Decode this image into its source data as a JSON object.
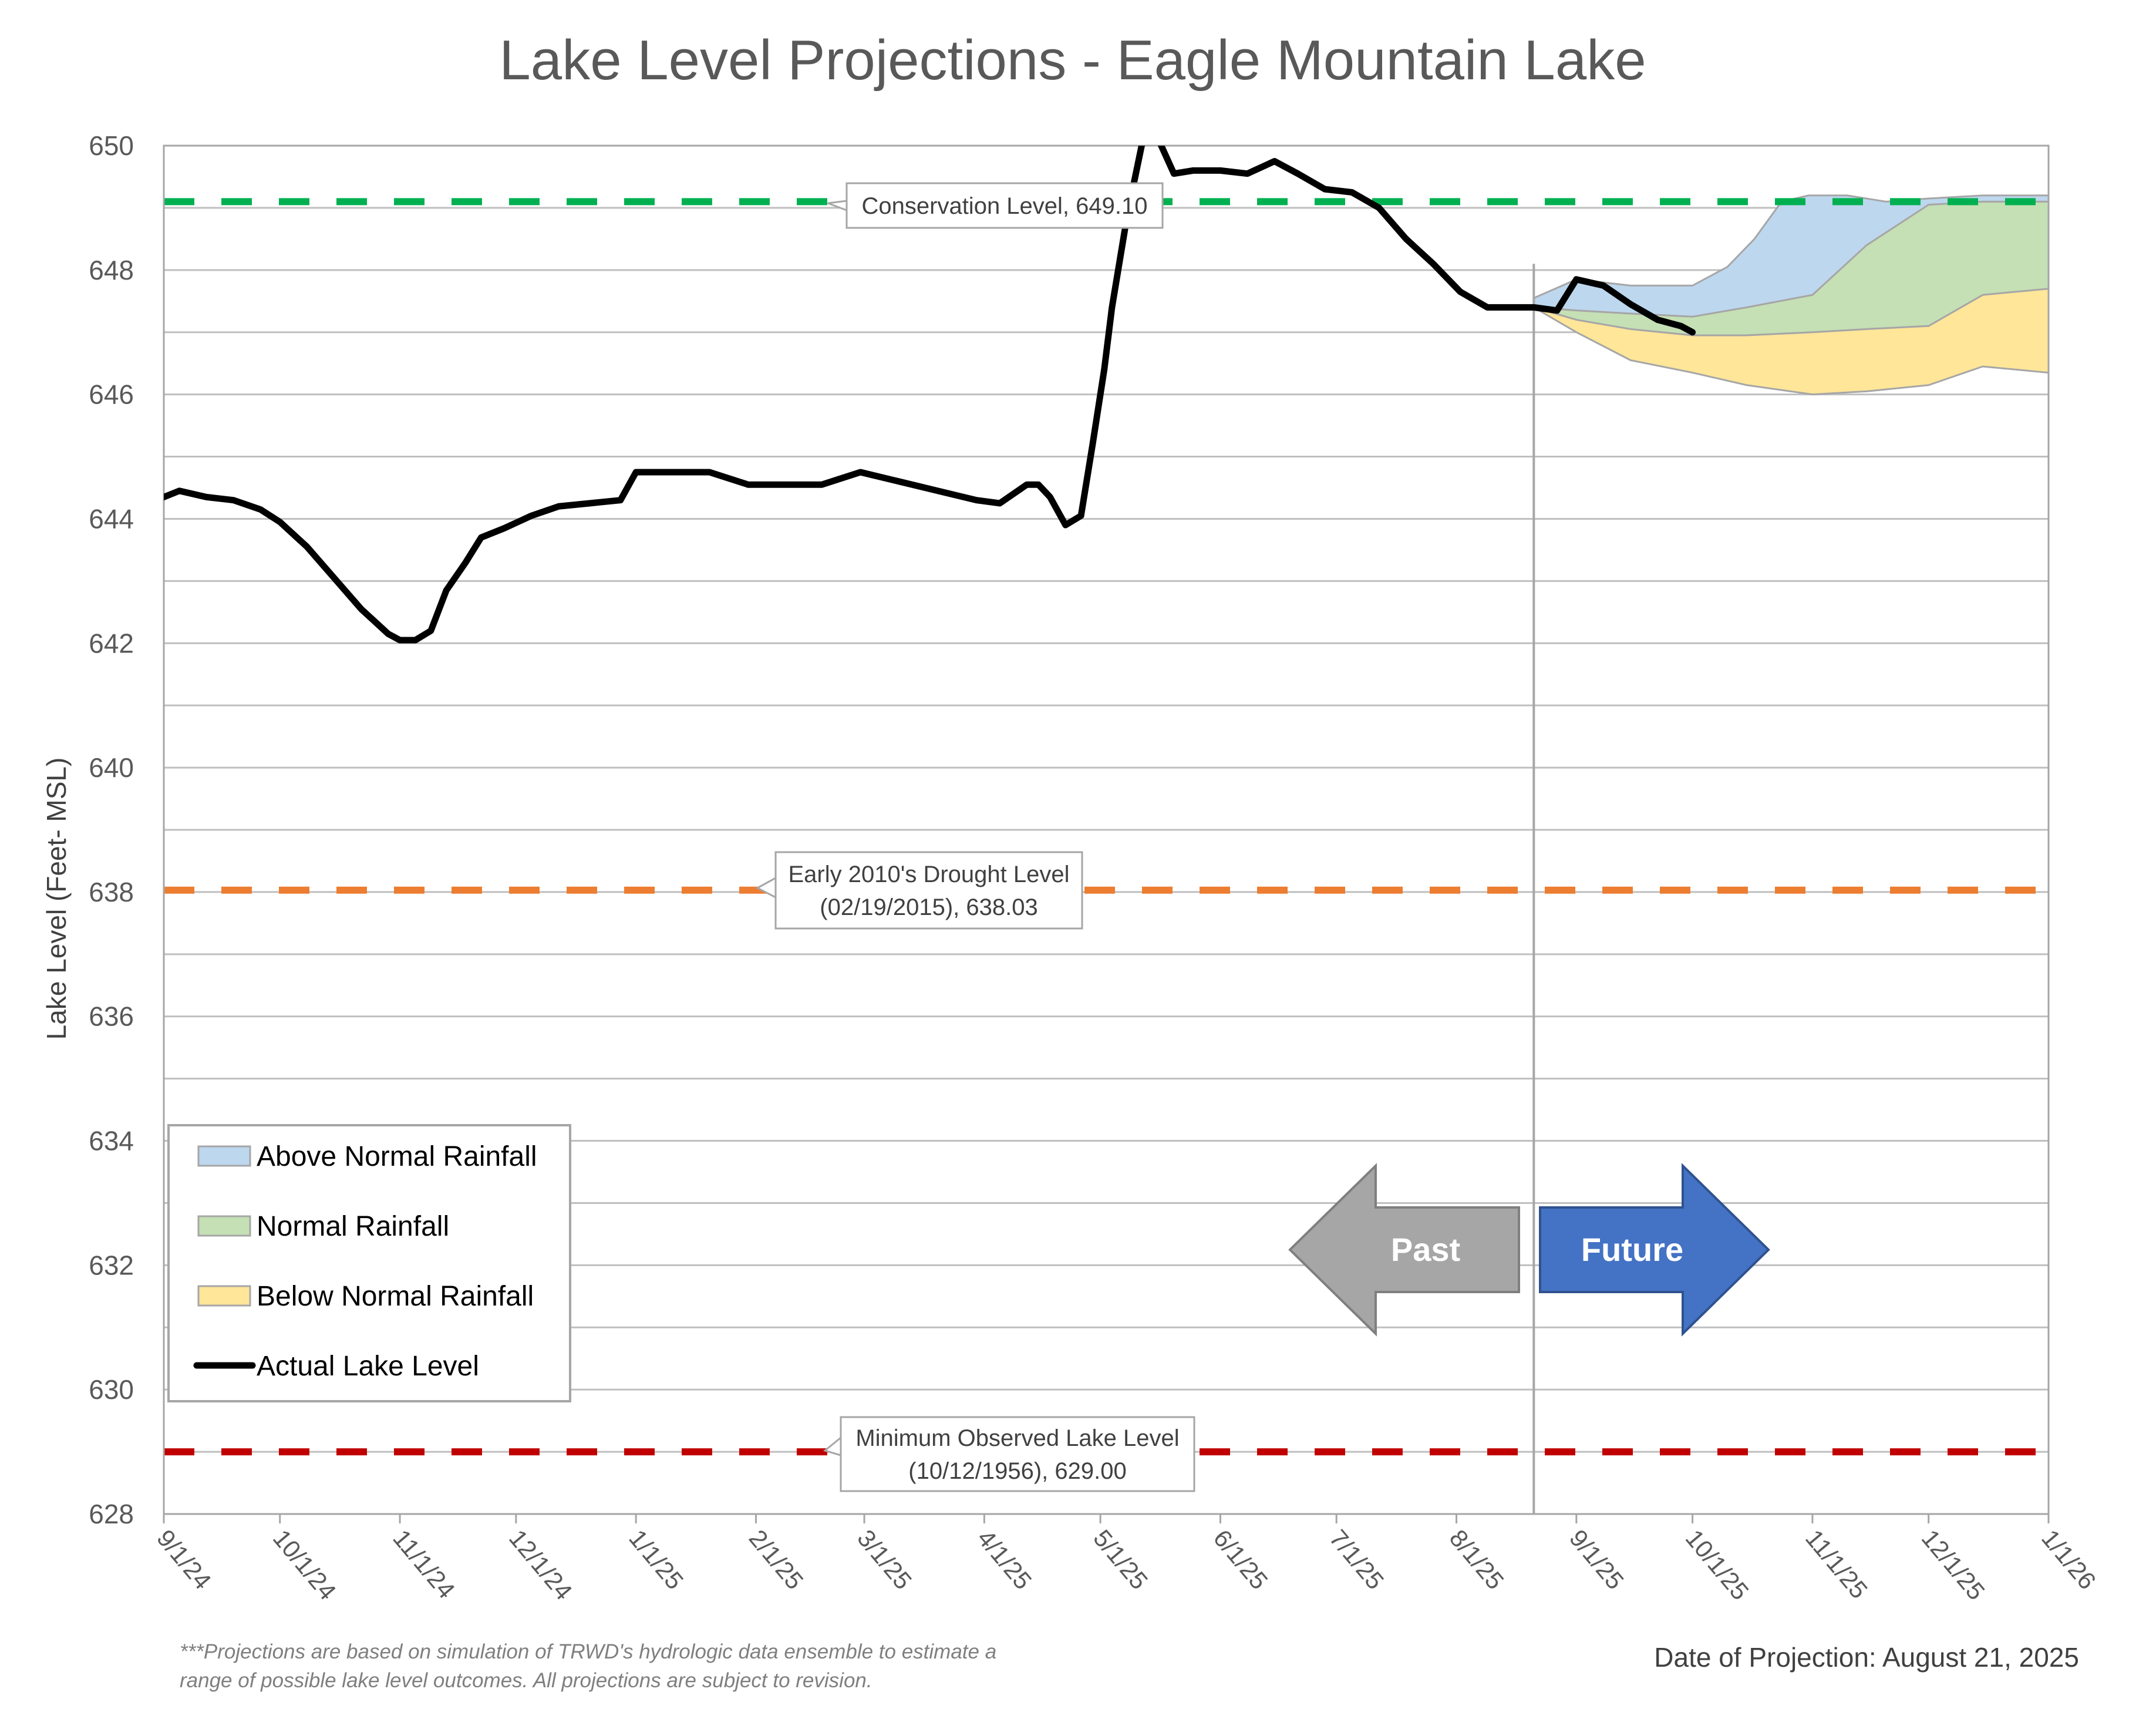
{
  "chart_data": {
    "type": "area",
    "title": "Lake Level Projections - Eagle Mountain Lake",
    "ylabel": "Lake Level (Feet- MSL)",
    "xlabel": "",
    "ylim": [
      628,
      650
    ],
    "yticks": [
      "628",
      "630",
      "632",
      "634",
      "636",
      "638",
      "640",
      "642",
      "644",
      "646",
      "648",
      "650"
    ],
    "xlim": [
      "2024-09-01",
      "2026-01-01"
    ],
    "xticks": [
      {
        "date": "2024-09-01",
        "label": "9/1/24"
      },
      {
        "date": "2024-10-01",
        "label": "10/1/24"
      },
      {
        "date": "2024-11-01",
        "label": "11/1/24"
      },
      {
        "date": "2024-12-01",
        "label": "12/1/24"
      },
      {
        "date": "2025-01-01",
        "label": "1/1/25"
      },
      {
        "date": "2025-02-01",
        "label": "2/1/25"
      },
      {
        "date": "2025-03-01",
        "label": "3/1/25"
      },
      {
        "date": "2025-04-01",
        "label": "4/1/25"
      },
      {
        "date": "2025-05-01",
        "label": "5/1/25"
      },
      {
        "date": "2025-06-01",
        "label": "6/1/25"
      },
      {
        "date": "2025-07-01",
        "label": "7/1/25"
      },
      {
        "date": "2025-08-01",
        "label": "8/1/25"
      },
      {
        "date": "2025-09-01",
        "label": "9/1/25"
      },
      {
        "date": "2025-10-01",
        "label": "10/1/25"
      },
      {
        "date": "2025-11-01",
        "label": "11/1/25"
      },
      {
        "date": "2025-12-01",
        "label": "12/1/25"
      },
      {
        "date": "2026-01-01",
        "label": "1/1/26"
      }
    ],
    "grid": true,
    "legend_position": "bottom-left",
    "reference_lines": [
      {
        "label": "Conservation Level, 649.10",
        "value": 649.1,
        "color": "#00B050"
      },
      {
        "label": "Early 2010's Drought Level\n(02/19/2015), 638.03",
        "value": 638.03,
        "color": "#ED7D31"
      },
      {
        "label": "Minimum Observed Lake Level\n(10/12/1956), 629.00",
        "value": 629.0,
        "color": "#C00000"
      }
    ],
    "projection_start": "2025-08-21",
    "series": [
      {
        "name": "Actual Lake Level",
        "color": "#000000",
        "x": [
          "2024-09-01",
          "2024-09-05",
          "2024-09-12",
          "2024-09-19",
          "2024-09-26",
          "2024-10-01",
          "2024-10-08",
          "2024-10-15",
          "2024-10-22",
          "2024-10-29",
          "2024-11-01",
          "2024-11-05",
          "2024-11-09",
          "2024-11-13",
          "2024-11-18",
          "2024-11-22",
          "2024-11-28",
          "2024-12-05",
          "2024-12-12",
          "2024-12-20",
          "2024-12-28",
          "2025-01-01",
          "2025-01-10",
          "2025-01-20",
          "2025-01-30",
          "2025-02-08",
          "2025-02-18",
          "2025-02-28",
          "2025-03-10",
          "2025-03-20",
          "2025-03-30",
          "2025-04-05",
          "2025-04-12",
          "2025-04-15",
          "2025-04-18",
          "2025-04-22",
          "2025-04-26",
          "2025-04-29",
          "2025-05-02",
          "2025-05-04",
          "2025-05-08",
          "2025-05-12",
          "2025-05-16",
          "2025-05-20",
          "2025-05-25",
          "2025-06-01",
          "2025-06-08",
          "2025-06-15",
          "2025-06-21",
          "2025-06-28",
          "2025-07-05",
          "2025-07-12",
          "2025-07-19",
          "2025-07-26",
          "2025-08-02",
          "2025-08-09",
          "2025-08-16",
          "2025-08-21",
          "2025-08-27",
          "2025-09-01",
          "2025-09-08",
          "2025-09-15",
          "2025-09-22",
          "2025-09-28",
          "2025-10-01"
        ],
        "y": [
          644.35,
          644.45,
          644.35,
          644.3,
          644.15,
          643.95,
          643.55,
          643.05,
          642.55,
          642.15,
          642.05,
          642.05,
          642.2,
          642.85,
          643.3,
          643.7,
          643.85,
          644.05,
          644.2,
          644.25,
          644.3,
          644.75,
          644.75,
          644.75,
          644.55,
          644.55,
          644.55,
          644.75,
          644.6,
          644.45,
          644.3,
          644.25,
          644.55,
          644.55,
          644.35,
          643.9,
          644.05,
          645.2,
          646.4,
          647.4,
          648.9,
          650.1,
          650.1,
          649.55,
          649.6,
          649.6,
          649.55,
          649.75,
          649.55,
          649.3,
          649.25,
          649.0,
          648.5,
          648.1,
          647.65,
          647.4,
          647.4,
          647.4,
          647.35,
          647.85,
          647.75,
          647.45,
          647.2,
          647.1,
          647.0
        ]
      },
      {
        "name": "Above Normal Rainfall",
        "color": "#BDD7EE",
        "x": [
          "2025-08-21",
          "2025-09-01",
          "2025-09-15",
          "2025-10-01",
          "2025-10-10",
          "2025-10-17",
          "2025-10-24",
          "2025-10-31",
          "2025-11-10",
          "2025-11-20",
          "2025-12-01",
          "2025-12-15",
          "2026-01-01"
        ],
        "low": [
          647.4,
          647.35,
          647.3,
          647.25,
          647.3,
          647.35,
          647.45,
          647.55,
          647.9,
          648.4,
          648.9,
          649.05,
          649.1
        ],
        "high": [
          647.55,
          647.85,
          647.75,
          647.75,
          648.05,
          648.5,
          649.1,
          649.2,
          649.2,
          649.1,
          649.15,
          649.2,
          649.2
        ]
      },
      {
        "name": "Normal Rainfall",
        "color": "#C5E0B4",
        "x": [
          "2025-08-21",
          "2025-09-01",
          "2025-09-15",
          "2025-10-01",
          "2025-10-15",
          "2025-11-01",
          "2025-11-15",
          "2025-12-01",
          "2025-12-15",
          "2026-01-01"
        ],
        "low": [
          647.4,
          647.2,
          647.05,
          646.95,
          646.95,
          647.0,
          647.05,
          647.1,
          647.2,
          647.3
        ],
        "high": [
          647.4,
          647.35,
          647.3,
          647.25,
          647.4,
          647.6,
          648.4,
          649.05,
          649.1,
          649.1
        ]
      },
      {
        "name": "Below Normal Rainfall",
        "color": "#FFE699",
        "x": [
          "2025-08-21",
          "2025-09-01",
          "2025-09-15",
          "2025-10-01",
          "2025-10-15",
          "2025-11-01",
          "2025-11-15",
          "2025-12-01",
          "2025-12-15",
          "2026-01-01"
        ],
        "low": [
          647.4,
          647.0,
          646.55,
          646.35,
          646.15,
          646.0,
          646.05,
          646.15,
          646.45,
          646.35
        ],
        "high": [
          647.4,
          647.2,
          647.05,
          646.95,
          646.95,
          647.0,
          647.05,
          647.1,
          647.6,
          647.7
        ]
      }
    ],
    "legend": [
      "Above Normal Rainfall",
      "Normal Rainfall",
      "Below Normal Rainfall",
      "Actual Lake Level"
    ],
    "arrows": {
      "past": "Past",
      "future": "Future"
    }
  },
  "colors": {
    "grid": "#BFBFBF",
    "text": "#595959",
    "past_arrow": "#A6A6A6",
    "future_arrow": "#4472C4"
  },
  "footnote": {
    "line1": "***Projections are based on simulation of TRWD's hydrologic data ensemble to estimate a",
    "line2": "range of possible lake level outcomes.  All projections are subject to revision."
  },
  "projection_date": "Date of Projection: August 21, 2025"
}
